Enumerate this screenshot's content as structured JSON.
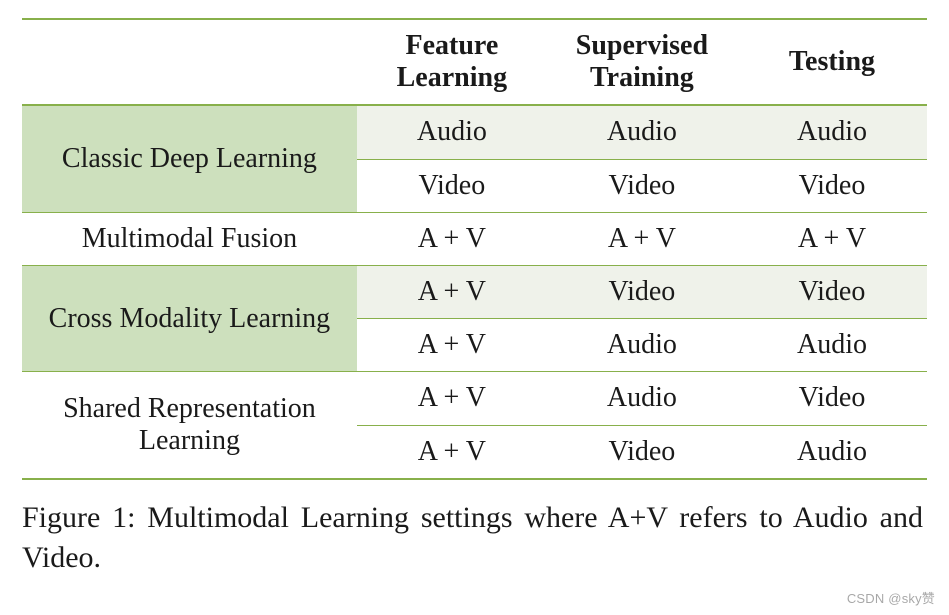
{
  "colors": {
    "rule": "#88b04b",
    "shade": "#cde0bd",
    "shade2": "#eff2ea"
  },
  "table": {
    "col_headers": [
      "Feature Learning",
      "Supervised Training",
      "Testing"
    ],
    "groups": [
      {
        "label": "Classic Deep Learning",
        "shaded": true,
        "rows": [
          [
            "Audio",
            "Audio",
            "Audio"
          ],
          [
            "Video",
            "Video",
            "Video"
          ]
        ]
      },
      {
        "label": "Multimodal Fusion",
        "shaded": false,
        "rows": [
          [
            "A + V",
            "A + V",
            "A + V"
          ]
        ]
      },
      {
        "label": "Cross Modality Learning",
        "shaded": true,
        "rows": [
          [
            "A + V",
            "Video",
            "Video"
          ],
          [
            "A + V",
            "Audio",
            "Audio"
          ]
        ]
      },
      {
        "label": "Shared Representation Learning",
        "shaded": false,
        "rows": [
          [
            "A + V",
            "Audio",
            "Video"
          ],
          [
            "A + V",
            "Video",
            "Audio"
          ]
        ]
      }
    ]
  },
  "caption": "Figure 1: Multimodal Learning settings where A+V refers to Audio and Video.",
  "watermark": "CSDN @sky赞"
}
